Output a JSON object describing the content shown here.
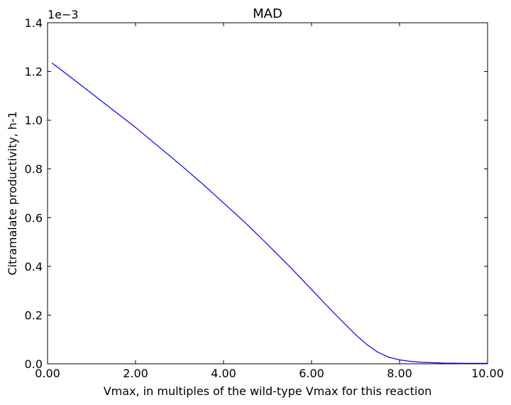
{
  "chart_data": {
    "type": "line",
    "title": "MAD",
    "xlabel": "Vmax, in multiples of the wild-type Vmax for this reaction",
    "ylabel": "Citramalate productivity, h-1",
    "y_offset_label": "1e−3",
    "xlim": [
      0,
      10
    ],
    "ylim": [
      0,
      1.4
    ],
    "y_scale_factor": 0.001,
    "x_ticks": [
      "0.00",
      "2.00",
      "4.00",
      "6.00",
      "8.00",
      "10.00"
    ],
    "y_ticks": [
      "0.0",
      "0.2",
      "0.4",
      "0.6",
      "0.8",
      "1.0",
      "1.2",
      "1.4"
    ],
    "grid": false,
    "series": [
      {
        "color": "#0000ff",
        "x": [
          0.1,
          0.5,
          1.0,
          1.5,
          2.0,
          2.5,
          3.0,
          3.5,
          4.0,
          4.5,
          5.0,
          5.5,
          6.0,
          6.5,
          7.0,
          7.25,
          7.5,
          7.75,
          8.0,
          8.25,
          8.5,
          9.0,
          9.5,
          10.0
        ],
        "y": [
          1.235,
          1.18,
          1.11,
          1.04,
          0.97,
          0.895,
          0.82,
          0.742,
          0.66,
          0.578,
          0.49,
          0.4,
          0.305,
          0.21,
          0.12,
          0.08,
          0.048,
          0.027,
          0.016,
          0.01,
          0.006,
          0.003,
          0.002,
          0.002
        ]
      }
    ]
  }
}
